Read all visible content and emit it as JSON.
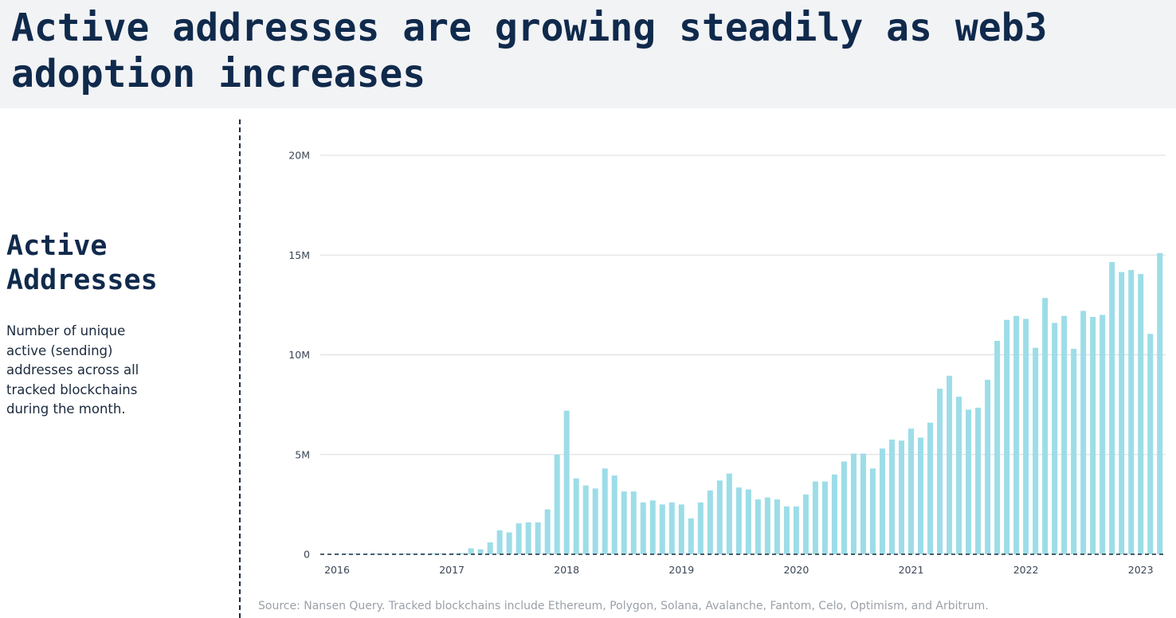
{
  "header": {
    "title": "Active addresses are growing steadily as web3 adoption increases"
  },
  "sidebar": {
    "title": "Active Addresses",
    "description": "Number of unique active (sending) addresses across all tracked blockchains during the month."
  },
  "footer": {
    "source": "Source: Nansen Query. Tracked blockchains include Ethereum, Polygon, Solana, Avalanche, Fantom, Celo, Optimism, and Arbitrum."
  },
  "colors": {
    "bar": "#9ddde8",
    "title": "#102a4c",
    "header_background": "#f2f3f5",
    "gridline": "#d9dcdf",
    "axis_text": "#3a4656",
    "source_text": "#9aa1a9"
  },
  "chart_data": {
    "type": "bar",
    "title": "",
    "xlabel": "",
    "ylabel": "",
    "ylim": [
      0,
      20000000
    ],
    "yticks": [
      0,
      5000000,
      10000000,
      15000000,
      20000000
    ],
    "ytick_labels": [
      "0",
      "5M",
      "10M",
      "15M",
      "20M"
    ],
    "xtick_labels": [
      "2016",
      "2017",
      "2018",
      "2019",
      "2020",
      "2021",
      "2022",
      "2023"
    ],
    "grid": true,
    "start_month": "2016-01",
    "end_month": "2023-03",
    "values_millions": [
      0.02,
      0.02,
      0.03,
      0.03,
      0.04,
      0.04,
      0.04,
      0.04,
      0.04,
      0.05,
      0.05,
      0.05,
      0.06,
      0.06,
      0.3,
      0.25,
      0.6,
      1.2,
      1.1,
      1.55,
      1.6,
      1.6,
      2.25,
      5.0,
      7.2,
      3.8,
      3.45,
      3.3,
      4.3,
      3.95,
      3.15,
      3.15,
      2.6,
      2.7,
      2.5,
      2.6,
      2.5,
      1.8,
      2.6,
      3.2,
      3.7,
      4.05,
      3.35,
      3.25,
      2.75,
      2.85,
      2.75,
      2.4,
      2.4,
      3.0,
      3.65,
      3.65,
      4.0,
      4.65,
      5.05,
      5.05,
      4.3,
      5.3,
      5.75,
      5.7,
      6.3,
      5.85,
      6.6,
      8.3,
      8.95,
      7.9,
      7.25,
      7.35,
      8.75,
      10.7,
      11.75,
      11.95,
      11.8,
      10.35,
      12.85,
      11.6,
      11.95,
      10.3,
      12.2,
      11.9,
      12.0,
      14.65,
      14.15,
      14.25,
      14.05,
      11.05,
      15.1
    ]
  }
}
